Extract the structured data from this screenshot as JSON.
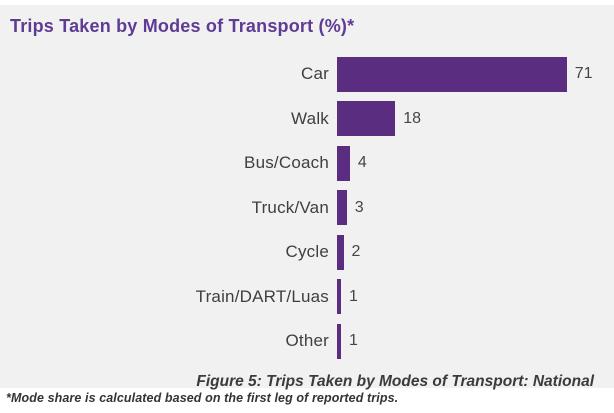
{
  "title": "Trips Taken by Modes of Transport (%)*",
  "caption": "Figure 5: Trips Taken by Modes of Transport: National",
  "footnote": "*Mode share is calculated based on the first leg of reported trips.",
  "colors": {
    "bar": "#5b2d81",
    "title_text": "#5e3c94",
    "panel_background": "#f2f1f2",
    "label_text": "#3f3f3f"
  },
  "chart_data": {
    "type": "bar",
    "orientation": "horizontal",
    "title": "Trips Taken by Modes of Transport (%)*",
    "categories": [
      "Car",
      "Walk",
      "Bus/Coach",
      "Truck/Van",
      "Cycle",
      "Train/DART/Luas",
      "Other"
    ],
    "values": [
      71,
      18,
      4,
      3,
      2,
      1,
      1
    ],
    "value_labels_shown": true,
    "xlabel": "",
    "ylabel": "",
    "xlim": [
      0,
      71
    ],
    "grid": false,
    "legend": false,
    "caption": "Figure 5: Trips Taken by Modes of Transport: National",
    "footnote": "*Mode share is calculated based on the first leg of reported trips."
  }
}
